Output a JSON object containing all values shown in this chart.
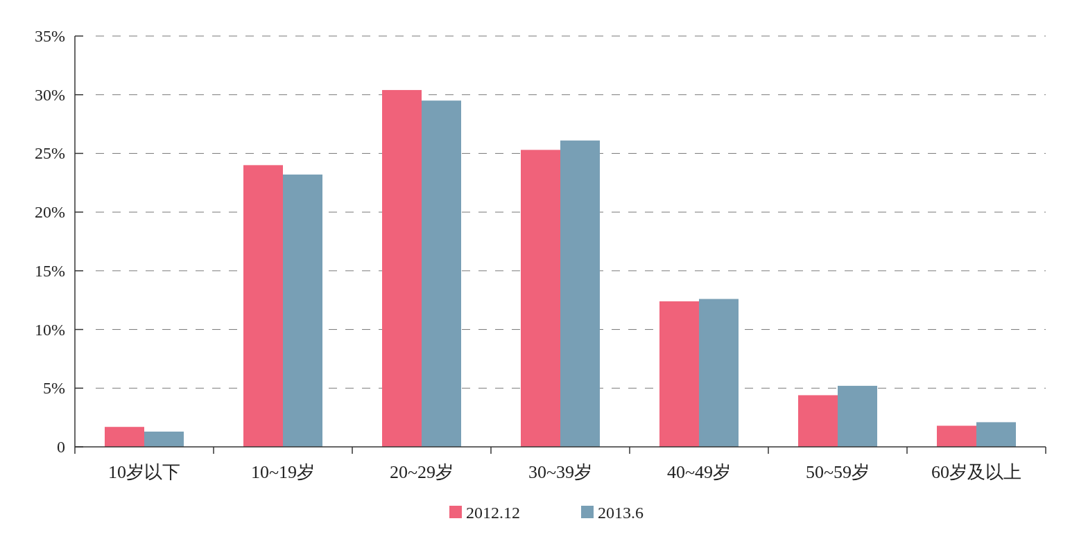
{
  "chart_data": {
    "type": "bar",
    "categories": [
      "10岁以下",
      "10~19岁",
      "20~29岁",
      "30~39岁",
      "40~49岁",
      "50~59岁",
      "60岁及以上"
    ],
    "series": [
      {
        "name": "2012.12",
        "color": "#f0627a",
        "values": [
          1.7,
          24.0,
          30.4,
          25.3,
          12.4,
          4.4,
          1.8
        ]
      },
      {
        "name": "2013.6",
        "color": "#789fb5",
        "values": [
          1.3,
          23.2,
          29.5,
          26.1,
          12.6,
          5.2,
          2.1
        ]
      }
    ],
    "ylim": [
      0,
      35
    ],
    "yticks": [
      {
        "value": 0,
        "label": "0"
      },
      {
        "value": 5,
        "label": "5%"
      },
      {
        "value": 10,
        "label": "10%"
      },
      {
        "value": 15,
        "label": "15%"
      },
      {
        "value": 20,
        "label": "20%"
      },
      {
        "value": 25,
        "label": "25%"
      },
      {
        "value": 30,
        "label": "30%"
      },
      {
        "value": 35,
        "label": "35%"
      }
    ],
    "grid": "y",
    "legend": "bottom"
  }
}
